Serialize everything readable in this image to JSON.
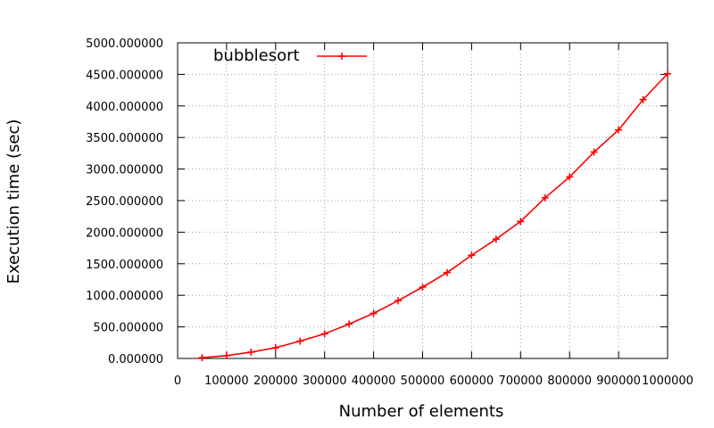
{
  "chart_data": {
    "type": "line",
    "title": "",
    "xlabel": "Number of elements",
    "ylabel": "Execution time (sec)",
    "xlim": [
      0,
      1000000
    ],
    "ylim": [
      0,
      5000
    ],
    "xticks": [
      0,
      100000,
      200000,
      300000,
      400000,
      500000,
      600000,
      700000,
      800000,
      900000,
      1000000
    ],
    "xtick_labels": [
      "0",
      "100000",
      "200000",
      "300000",
      "400000",
      "500000",
      "600000",
      "700000",
      "800000",
      "900000",
      "1000000"
    ],
    "yticks": [
      0,
      500,
      1000,
      1500,
      2000,
      2500,
      3000,
      3500,
      4000,
      4500,
      5000
    ],
    "ytick_labels": [
      "0.000000",
      "500.000000",
      "1000.000000",
      "1500.000000",
      "2000.000000",
      "2500.000000",
      "3000.000000",
      "3500.000000",
      "4000.000000",
      "4500.000000",
      "5000.000000"
    ],
    "grid": true,
    "legend_position": "top-left",
    "series": [
      {
        "name": "bubblesort",
        "color": "#ff0000",
        "marker": "plus",
        "x": [
          50000,
          100000,
          150000,
          200000,
          250000,
          300000,
          350000,
          400000,
          450000,
          500000,
          550000,
          600000,
          650000,
          700000,
          750000,
          800000,
          850000,
          900000,
          950000,
          1000000
        ],
        "y": [
          12,
          45,
          100,
          170,
          275,
          390,
          545,
          715,
          915,
          1130,
          1360,
          1635,
          1890,
          2170,
          2545,
          2875,
          3270,
          3620,
          4100,
          4510
        ]
      }
    ]
  }
}
